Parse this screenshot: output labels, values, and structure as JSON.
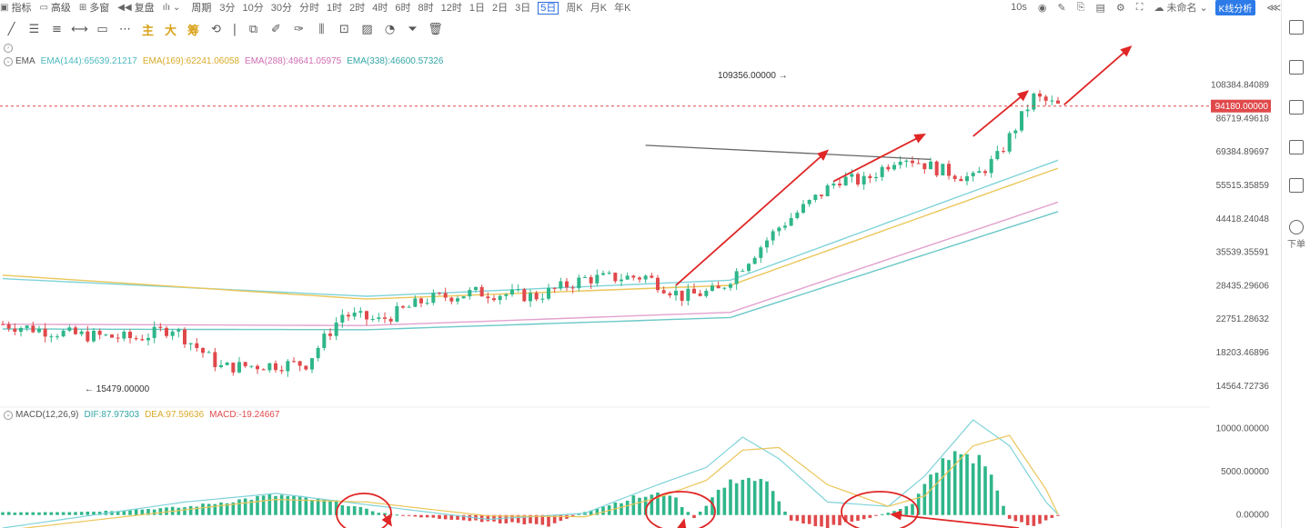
{
  "toolbar": {
    "indicator": "指标",
    "advanced": "高级",
    "multi_window": "多窗",
    "replay": "复盘",
    "period": "周期",
    "periods": [
      "3分",
      "10分",
      "30分",
      "分时",
      "1时",
      "2时",
      "4时",
      "6时",
      "8时",
      "12时",
      "1日",
      "2日",
      "3日",
      "5日",
      "周K",
      "月K",
      "年K"
    ],
    "active_period": "5日",
    "refresh": "10s",
    "layout_name": "未命名",
    "analysis_button": "K线分析"
  },
  "drawbar": {
    "tools": [
      "line-tool",
      "hline-tool",
      "channel-tool",
      "ray-tool",
      "rect-tool",
      "more-tool",
      "主",
      "大",
      "筹"
    ],
    "main": "主",
    "big": "大",
    "chips": "筹"
  },
  "sidebar": {
    "order_label": "下单"
  },
  "ema_legend": {
    "name": "EMA",
    "ema144": "EMA(144):65639.21217",
    "ema169": "EMA(169):62241.06058",
    "ema288": "EMA(288):49641.05975",
    "ema338": "EMA(338):46600.57326"
  },
  "macd_legend": {
    "name": "MACD(12,26,9)",
    "dif": "DIF:87.97303",
    "dea": "DEA:97.59636",
    "macd": "MACD:-19.24667"
  },
  "colors": {
    "up": "#2fb68a",
    "down": "#e0494b",
    "ema144": "#7fd3d9",
    "ema169": "#ebc659",
    "ema288": "#e3a2cf",
    "ema338": "#6cc8c8",
    "dif": "#7fd3d9",
    "dea": "#ebc659",
    "annotation": "#e02626",
    "last_price_bg": "#e0494b",
    "accent": "#2d7be8"
  },
  "chart_data": {
    "type": "candlestick",
    "scale": "log",
    "price_axis_ticks": [
      108384.84089,
      86719.49618,
      69384.89697,
      55515.35859,
      44418.24048,
      35539.35591,
      28435.29606,
      22751.28632,
      18203.46896,
      14564.72736
    ],
    "last_price": "94180.00000",
    "high_label": "109356.00000",
    "low_label": "15479.00000",
    "ylim": [
      12500,
      125000
    ],
    "candle_count": 175,
    "anchors": [
      {
        "i": 0,
        "p": 22000
      },
      {
        "i": 12,
        "p": 20500
      },
      {
        "i": 22,
        "p": 20000
      },
      {
        "i": 28,
        "p": 21500
      },
      {
        "i": 36,
        "p": 16500
      },
      {
        "i": 45,
        "p": 16800
      },
      {
        "i": 50,
        "p": 16900
      },
      {
        "i": 56,
        "p": 23500
      },
      {
        "i": 62,
        "p": 22500
      },
      {
        "i": 70,
        "p": 26000
      },
      {
        "i": 78,
        "p": 27200
      },
      {
        "i": 88,
        "p": 26500
      },
      {
        "i": 96,
        "p": 29800
      },
      {
        "i": 106,
        "p": 30200
      },
      {
        "i": 112,
        "p": 26500
      },
      {
        "i": 118,
        "p": 27500
      },
      {
        "i": 128,
        "p": 42000
      },
      {
        "i": 138,
        "p": 58000
      },
      {
        "i": 142,
        "p": 57000
      },
      {
        "i": 148,
        "p": 68000
      },
      {
        "i": 154,
        "p": 62000
      },
      {
        "i": 160,
        "p": 58000
      },
      {
        "i": 164,
        "p": 67000
      },
      {
        "i": 170,
        "p": 100000
      },
      {
        "i": 174,
        "p": 94180
      }
    ],
    "ema_series": [
      {
        "name": "EMA(144)",
        "points": [
          [
            0,
            29800
          ],
          [
            60,
            26500
          ],
          [
            120,
            29500
          ],
          [
            174,
            65639
          ]
        ]
      },
      {
        "name": "EMA(169)",
        "points": [
          [
            0,
            30500
          ],
          [
            60,
            26000
          ],
          [
            120,
            28500
          ],
          [
            174,
            62241
          ]
        ]
      },
      {
        "name": "EMA(288)",
        "points": [
          [
            0,
            22000
          ],
          [
            60,
            21800
          ],
          [
            120,
            23800
          ],
          [
            174,
            49641
          ]
        ]
      },
      {
        "name": "EMA(338)",
        "points": [
          [
            0,
            21300
          ],
          [
            60,
            21200
          ],
          [
            120,
            23000
          ],
          [
            174,
            46600
          ]
        ]
      }
    ],
    "macd_axis_ticks": [
      10000,
      5000,
      0
    ],
    "macd_axis_labels": [
      "10000.00000",
      "5000.00000",
      "0.00000"
    ],
    "macd_ylim": [
      -1500,
      11000
    ],
    "macd_hist_anchors": [
      {
        "i": 0,
        "v": 300
      },
      {
        "i": 15,
        "v": 400
      },
      {
        "i": 30,
        "v": 900
      },
      {
        "i": 45,
        "v": 2300
      },
      {
        "i": 55,
        "v": 1500
      },
      {
        "i": 62,
        "v": 300
      },
      {
        "i": 68,
        "v": -200
      },
      {
        "i": 80,
        "v": -800
      },
      {
        "i": 90,
        "v": -1200
      },
      {
        "i": 96,
        "v": 400
      },
      {
        "i": 104,
        "v": 2000
      },
      {
        "i": 110,
        "v": 2500
      },
      {
        "i": 114,
        "v": -400
      },
      {
        "i": 118,
        "v": 2800
      },
      {
        "i": 122,
        "v": 4500
      },
      {
        "i": 126,
        "v": 3600
      },
      {
        "i": 130,
        "v": -600
      },
      {
        "i": 136,
        "v": -1400
      },
      {
        "i": 142,
        "v": -500
      },
      {
        "i": 146,
        "v": 300
      },
      {
        "i": 150,
        "v": 1200
      },
      {
        "i": 154,
        "v": 5500
      },
      {
        "i": 158,
        "v": 7200
      },
      {
        "i": 162,
        "v": 6000
      },
      {
        "i": 166,
        "v": -400
      },
      {
        "i": 170,
        "v": -1300
      },
      {
        "i": 174,
        "v": -19
      }
    ],
    "dif_anchors": [
      {
        "i": 0,
        "v": -1500
      },
      {
        "i": 30,
        "v": 1500
      },
      {
        "i": 45,
        "v": 2500
      },
      {
        "i": 60,
        "v": 1200
      },
      {
        "i": 80,
        "v": -500
      },
      {
        "i": 96,
        "v": 200
      },
      {
        "i": 108,
        "v": 3500
      },
      {
        "i": 116,
        "v": 5500
      },
      {
        "i": 122,
        "v": 9000
      },
      {
        "i": 128,
        "v": 6500
      },
      {
        "i": 136,
        "v": 1500
      },
      {
        "i": 146,
        "v": 1000
      },
      {
        "i": 152,
        "v": 4500
      },
      {
        "i": 160,
        "v": 11000
      },
      {
        "i": 166,
        "v": 8000
      },
      {
        "i": 172,
        "v": 1500
      },
      {
        "i": 174,
        "v": 88
      }
    ],
    "dea_anchors": [
      {
        "i": 0,
        "v": -1800
      },
      {
        "i": 30,
        "v": 600
      },
      {
        "i": 45,
        "v": 1800
      },
      {
        "i": 60,
        "v": 1500
      },
      {
        "i": 80,
        "v": -100
      },
      {
        "i": 96,
        "v": -200
      },
      {
        "i": 108,
        "v": 2000
      },
      {
        "i": 116,
        "v": 4000
      },
      {
        "i": 122,
        "v": 7500
      },
      {
        "i": 128,
        "v": 7800
      },
      {
        "i": 136,
        "v": 3500
      },
      {
        "i": 146,
        "v": 1000
      },
      {
        "i": 152,
        "v": 2200
      },
      {
        "i": 160,
        "v": 8000
      },
      {
        "i": 166,
        "v": 9200
      },
      {
        "i": 172,
        "v": 3000
      },
      {
        "i": 174,
        "v": 98
      }
    ],
    "trendline": {
      "from": [
        106,
        72500
      ],
      "to": [
        150,
        66000
      ]
    },
    "annotations": {
      "arrows": [
        {
          "from": [
            111,
            28500
          ],
          "to": [
            136,
            70000
          ]
        },
        {
          "from": [
            137,
            57000
          ],
          "to": [
            152,
            78000
          ]
        },
        {
          "from": [
            160,
            77000
          ],
          "to": [
            169,
            104000
          ]
        },
        {
          "from": [
            175,
            95000
          ],
          "to": [
            186,
            140000
          ]
        }
      ],
      "circles": [
        "macd-circle-1",
        "macd-circle-2",
        "macd-circle-3"
      ]
    }
  }
}
